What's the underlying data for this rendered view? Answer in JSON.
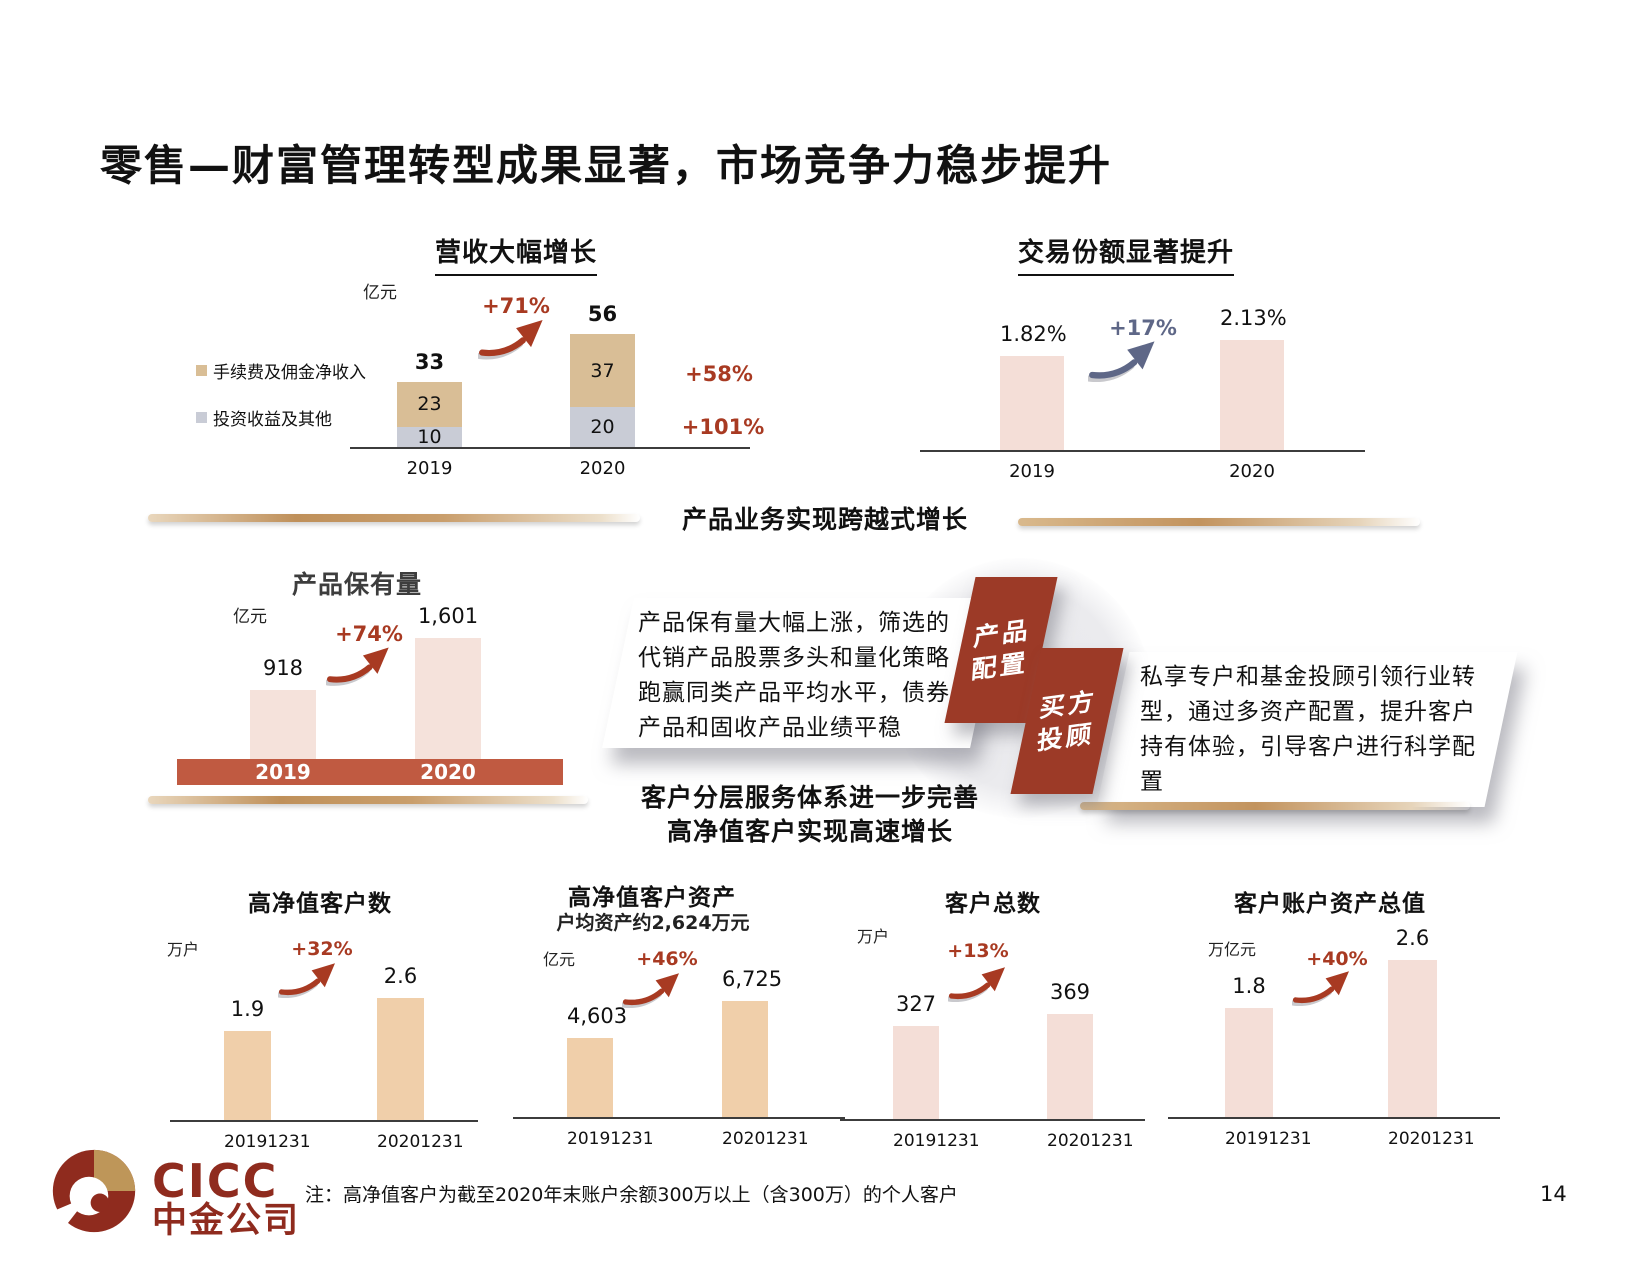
{
  "slide": {
    "title": "零售—财富管理转型成果显著，市场竞争力稳步提升",
    "page_number": "14",
    "note": "注：高净值客户为截至2020年末账户余额300万以上（含300万）的个人客户"
  },
  "brand": {
    "logo_text": "CICC",
    "logo_cn": "中金公司"
  },
  "sections": {
    "s1": "产品业务实现跨越式增长",
    "s2_line1": "客户分层服务体系进一步完善",
    "s2_line2": "高净值客户实现高速增长"
  },
  "callouts": {
    "product_text": "产品保有量大幅上涨，筛选的代销产品股票多头和量化策略跑赢同类产品平均水平，债券产品和固收产品业绩平稳",
    "product_tag_line1": "产品",
    "product_tag_line2": "配置",
    "advisor_tag_line1": "买方",
    "advisor_tag_line2": "投顾",
    "advisor_text": "私享专户和基金投顾引领行业转型，通过多资产配置，提升客户持有体验，引导客户进行科学配置"
  },
  "colors": {
    "accent_red": "#A83A22",
    "brand_red": "#8F2B1E",
    "band_red": "#C05A41",
    "tag_red": "#9C3A27",
    "blue_gray": "#5E6787",
    "tan_bar": "#D9BE96",
    "gray_bar": "#C9CCD6",
    "pink_bar": "#F4DED7",
    "peach_bar": "#F0CFAA"
  },
  "chart_data": [
    {
      "id": "revenue",
      "type": "bar",
      "stacked": true,
      "title": "营收大幅增长",
      "unit": "亿元",
      "categories": [
        "2019",
        "2020"
      ],
      "series": [
        {
          "name": "手续费及佣金净收入",
          "values": [
            23,
            37
          ],
          "labels": [
            "23",
            "37"
          ],
          "color": "#D9BE96"
        },
        {
          "name": "投资收益及其他",
          "values": [
            10,
            20
          ],
          "labels": [
            "10",
            "20"
          ],
          "color": "#C9CCD6"
        }
      ],
      "totals": [
        33,
        56
      ],
      "total_labels": [
        "33",
        "56"
      ],
      "ymax": 56,
      "growth": "+71%",
      "series_growth": [
        "+58%",
        "+101%"
      ],
      "legend_position": "left"
    },
    {
      "id": "market_share",
      "type": "bar",
      "title": "交易份额显著提升",
      "categories": [
        "2019",
        "2020"
      ],
      "values": [
        1.82,
        2.13
      ],
      "labels": [
        "1.82%",
        "2.13%"
      ],
      "ymax": 2.13,
      "growth": "+17%"
    },
    {
      "id": "product_holdings",
      "type": "bar",
      "title": "产品保有量",
      "unit": "亿元",
      "categories": [
        "2019",
        "2020"
      ],
      "values": [
        918,
        1601
      ],
      "labels": [
        "918",
        "1,601"
      ],
      "ymax": 1601,
      "growth": "+74%"
    },
    {
      "id": "hnw_clients",
      "type": "bar",
      "title": "高净值客户数",
      "unit": "万户",
      "categories": [
        "20191231",
        "20201231"
      ],
      "values": [
        1.9,
        2.6
      ],
      "labels": [
        "1.9",
        "2.6"
      ],
      "ymax": 2.6,
      "growth": "+32%"
    },
    {
      "id": "hnw_assets",
      "type": "bar",
      "title": "高净值客户资产",
      "subtitle": "户均资产约2,624万元",
      "unit": "亿元",
      "categories": [
        "20191231",
        "20201231"
      ],
      "values": [
        4603,
        6725
      ],
      "labels": [
        "4,603",
        "6,725"
      ],
      "ymax": 6725,
      "growth": "+46%"
    },
    {
      "id": "total_clients",
      "type": "bar",
      "title": "客户总数",
      "unit": "万户",
      "categories": [
        "20191231",
        "20201231"
      ],
      "values": [
        327,
        369
      ],
      "labels": [
        "327",
        "369"
      ],
      "ymax": 369,
      "growth": "+13%"
    },
    {
      "id": "total_account_assets",
      "type": "bar",
      "title": "客户账户资产总值",
      "unit": "万亿元",
      "categories": [
        "20191231",
        "20201231"
      ],
      "values": [
        1.8,
        2.6
      ],
      "labels": [
        "1.8",
        "2.6"
      ],
      "ymax": 2.6,
      "growth": "+40%"
    }
  ]
}
